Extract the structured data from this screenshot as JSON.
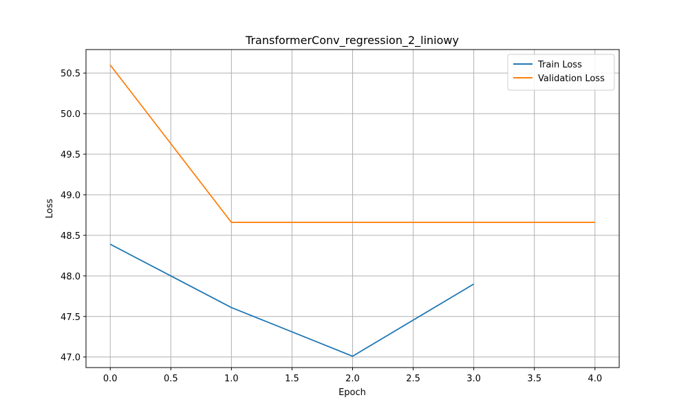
{
  "chart_data": {
    "type": "line",
    "title": "TransformerConv_regression_2_liniowy",
    "xlabel": "Epoch",
    "ylabel": "Loss",
    "xlim": [
      -0.2,
      4.2
    ],
    "ylim": [
      46.87,
      50.79
    ],
    "xticks": [
      0.0,
      0.5,
      1.0,
      1.5,
      2.0,
      2.5,
      3.0,
      3.5,
      4.0
    ],
    "xtick_labels": [
      "0.0",
      "0.5",
      "1.0",
      "1.5",
      "2.0",
      "2.5",
      "3.0",
      "3.5",
      "4.0"
    ],
    "yticks": [
      47.0,
      47.5,
      48.0,
      48.5,
      49.0,
      49.5,
      50.0,
      50.5
    ],
    "ytick_labels": [
      "47.0",
      "47.5",
      "48.0",
      "48.5",
      "49.0",
      "49.5",
      "50.0",
      "50.5"
    ],
    "grid": true,
    "legend_position": "top-right",
    "series": [
      {
        "name": "Train Loss",
        "color": "#1f77b4",
        "x": [
          0,
          1,
          2,
          3
        ],
        "y": [
          48.39,
          47.61,
          47.01,
          47.9
        ]
      },
      {
        "name": "Validation Loss",
        "color": "#ff7f0e",
        "x": [
          0,
          1,
          2,
          3,
          4
        ],
        "y": [
          50.6,
          48.66,
          48.66,
          48.66,
          48.66
        ]
      }
    ]
  }
}
